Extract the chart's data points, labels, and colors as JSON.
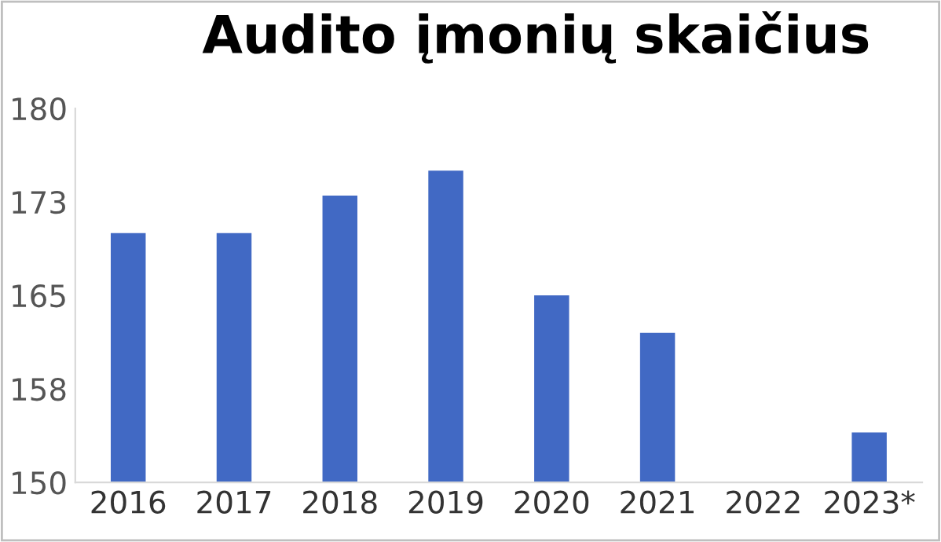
{
  "chart_data": {
    "type": "bar",
    "title": "Audito įmonių skaičius",
    "categories": [
      "2016",
      "2017",
      "2018",
      "2019",
      "2020",
      "2021",
      "2022",
      "2023*"
    ],
    "values": [
      170,
      170,
      173,
      175,
      165,
      162,
      null,
      154
    ],
    "color": "#4169c4",
    "ylim": [
      150,
      180
    ],
    "yticks": [
      150,
      {
        "value": 157.5,
        "label": "158"
      },
      165,
      {
        "value": 172.5,
        "label": "173"
      },
      180
    ],
    "grid": false
  }
}
